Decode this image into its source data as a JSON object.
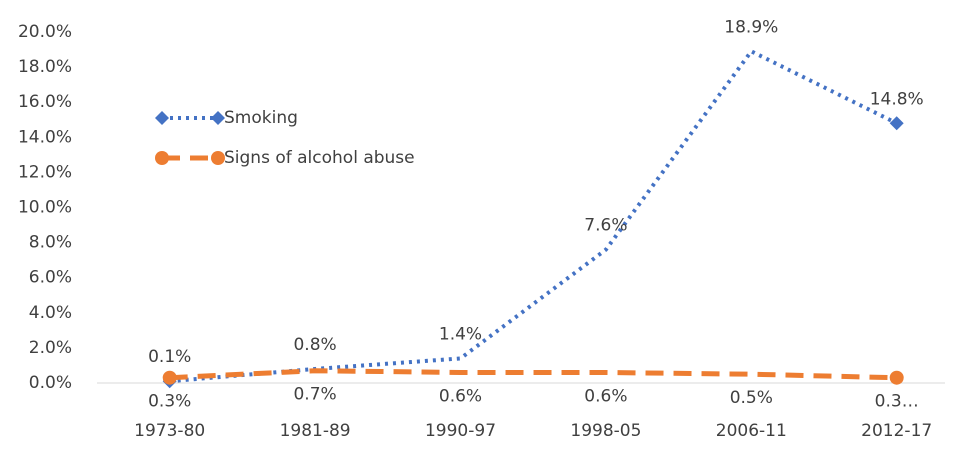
{
  "chart_data": {
    "type": "line",
    "categories": [
      "1973-80",
      "1981-89",
      "1990-97",
      "1998-05",
      "2006-11",
      "2012-17"
    ],
    "series": [
      {
        "name": "Smoking",
        "color": "#4472c4",
        "dash": "dotted",
        "marker": "diamond",
        "values": [
          0.1,
          0.8,
          1.4,
          7.6,
          18.9,
          14.8
        ],
        "value_labels": [
          "0.1%",
          "0.8%",
          "1.4%",
          "7.6%",
          "18.9%",
          "14.8%"
        ]
      },
      {
        "name": "Signs of alcohol abuse",
        "color": "#ed7d31",
        "dash": "dashed",
        "marker": "circle",
        "values": [
          0.3,
          0.7,
          0.6,
          0.6,
          0.5,
          0.3
        ],
        "value_labels": [
          "0.3%",
          "0.7%",
          "0.6%",
          "0.6%",
          "0.5%",
          "0.3…"
        ]
      }
    ],
    "ylim": [
      0,
      20
    ],
    "yticks": [
      {
        "value": 0,
        "label": "0.0%"
      },
      {
        "value": 2,
        "label": "2.0%"
      },
      {
        "value": 4,
        "label": "4.0%"
      },
      {
        "value": 6,
        "label": "6.0%"
      },
      {
        "value": 8,
        "label": "8.0%"
      },
      {
        "value": 10,
        "label": "10.0%"
      },
      {
        "value": 12,
        "label": "12.0%"
      },
      {
        "value": 14,
        "label": "14.0%"
      },
      {
        "value": 16,
        "label": "16.0%"
      },
      {
        "value": 18,
        "label": "18.0%"
      },
      {
        "value": 20,
        "label": "20.0%"
      }
    ],
    "grid": false,
    "legend": "upper left"
  }
}
